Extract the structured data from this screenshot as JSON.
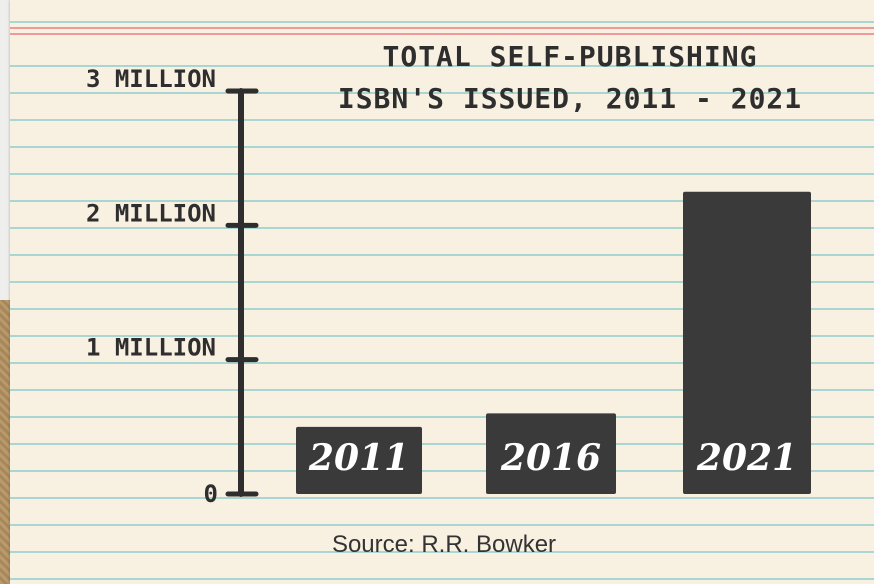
{
  "chart_data": {
    "type": "bar",
    "title_lines": [
      "TOTAL SELF-PUBLISHING",
      "ISBN'S ISSUED, 2011 - 2021"
    ],
    "categories": [
      "2011",
      "2016",
      "2021"
    ],
    "values": [
      0.5,
      0.6,
      2.25
    ],
    "value_unit": "million",
    "ylim": [
      0,
      3
    ],
    "yticks": [
      {
        "value": 0,
        "label": "0"
      },
      {
        "value": 1,
        "label": "1 MILLION"
      },
      {
        "value": 2,
        "label": "2 MILLION"
      },
      {
        "value": 3,
        "label": "3 MILLION"
      }
    ],
    "bar_color": "#3a3a3a",
    "source": "Source: R.R. Bowker"
  }
}
